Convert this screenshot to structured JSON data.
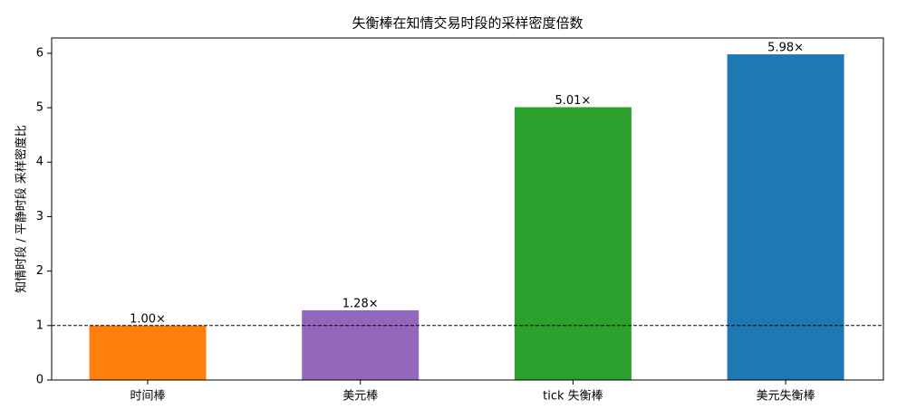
{
  "chart_data": {
    "type": "bar",
    "title": "失衡棒在知情交易时段的采样密度倍数",
    "y_label": "知情时段 / 平静时段 采样密度比",
    "categories": [
      "时间棒",
      "美元棒",
      "tick 失衡棒",
      "美元失衡棒"
    ],
    "values": [
      1.0,
      1.28,
      5.01,
      5.98
    ],
    "value_labels": [
      "1.00×",
      "1.28×",
      "5.01×",
      "5.98×"
    ],
    "colors": [
      "#ff7f0e",
      "#9467bd",
      "#2ca02c",
      "#1f77b4"
    ],
    "ylim": [
      0,
      6.28
    ],
    "yticks": [
      0,
      1,
      2,
      3,
      4,
      5,
      6
    ],
    "reference_line": 1
  }
}
